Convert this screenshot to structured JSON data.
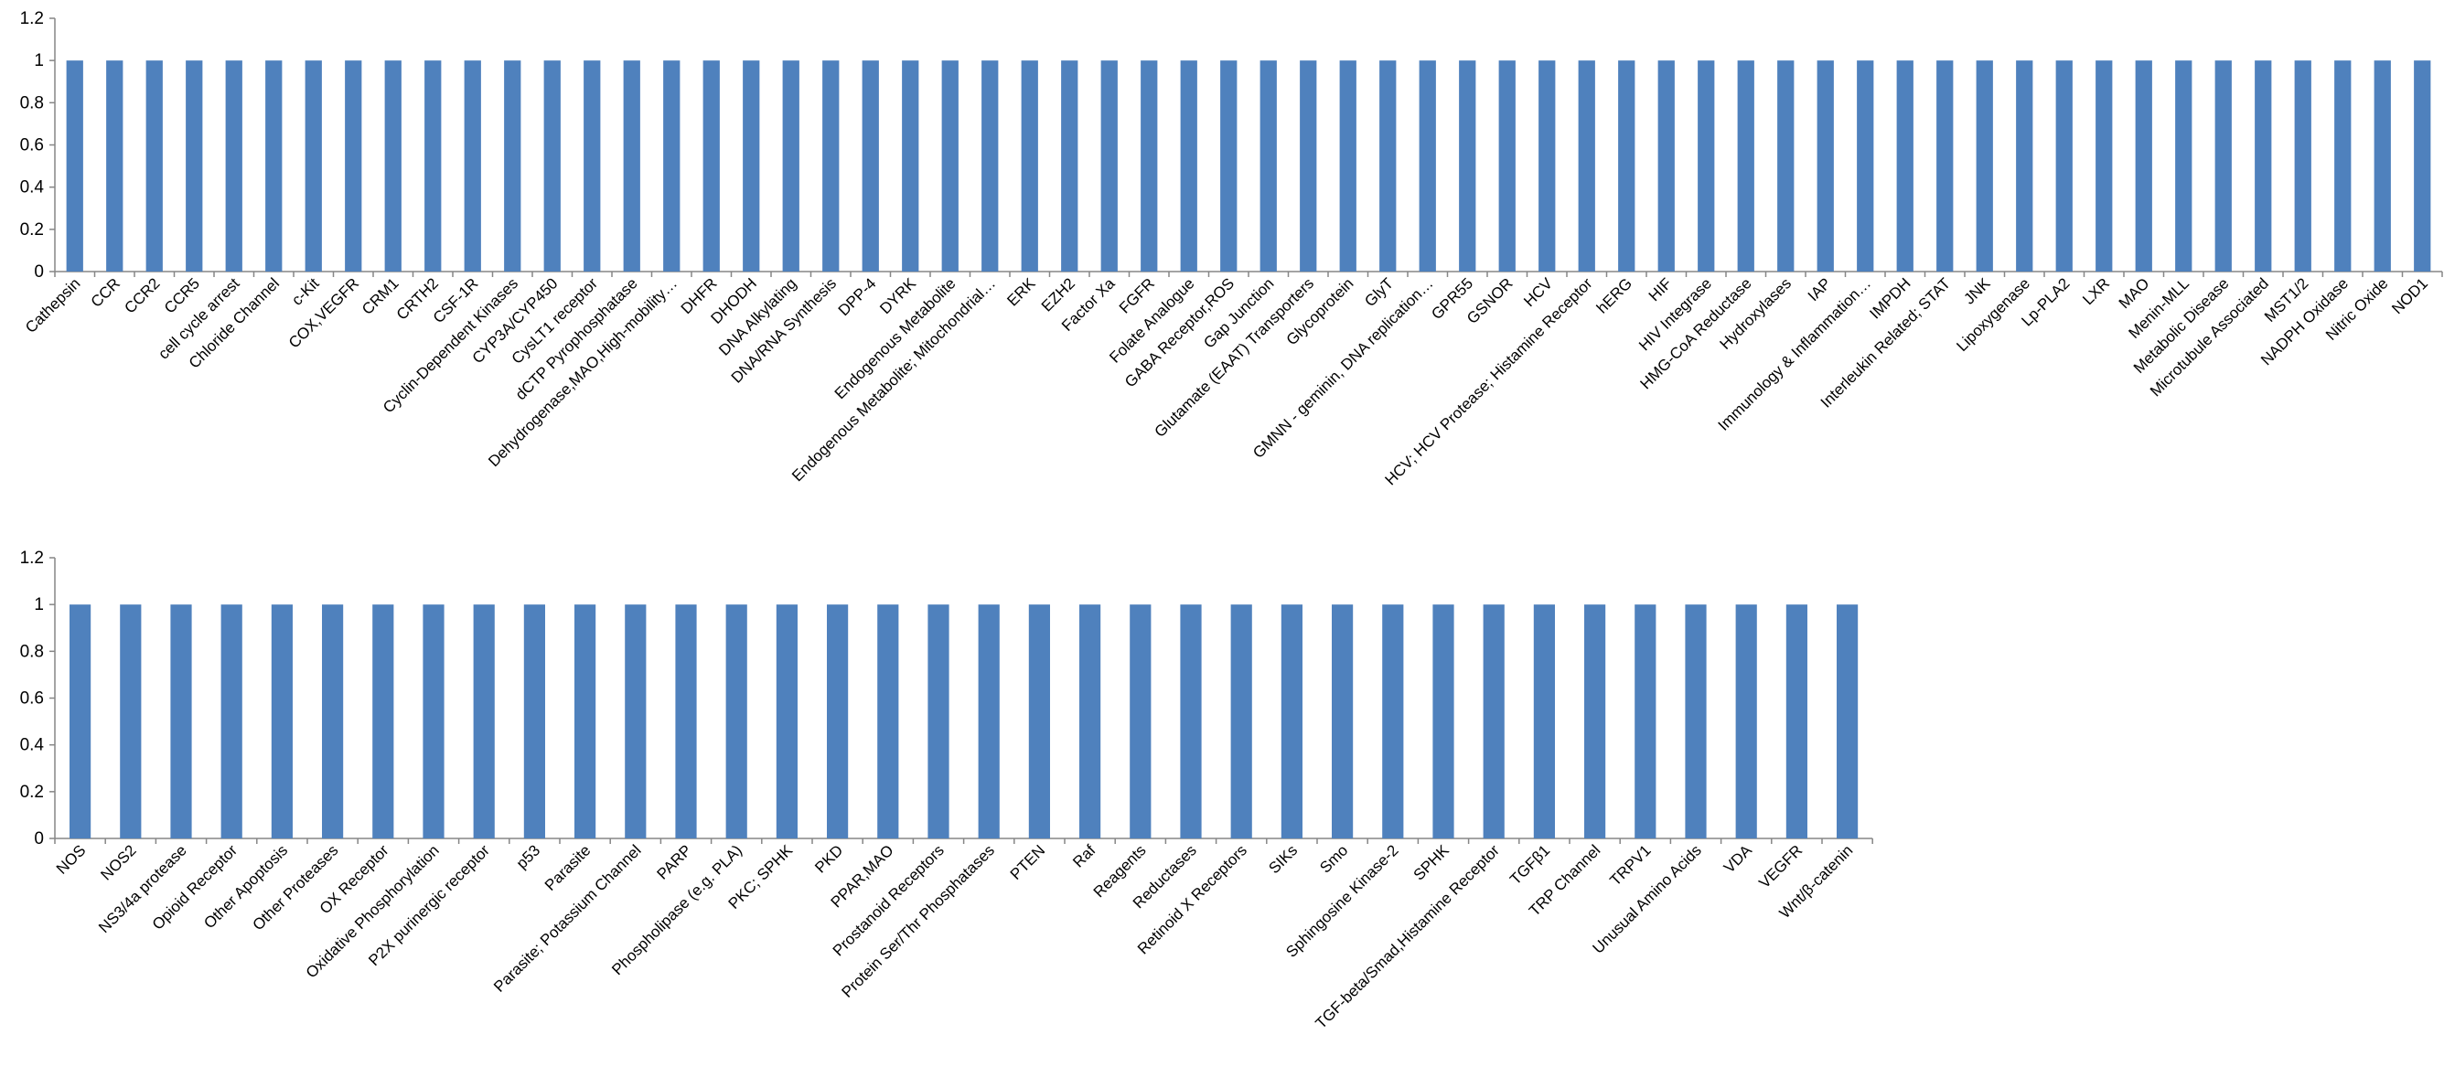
{
  "chart_data": [
    {
      "type": "bar",
      "ylim": [
        0,
        1.2
      ],
      "yticks": [
        "0",
        "0.2",
        "0.4",
        "0.6",
        "0.8",
        "1",
        "1.2"
      ],
      "grid": false,
      "legend": "none",
      "bar_color": "#4F81BD",
      "categories": [
        "Cathepsin",
        "CCR",
        "CCR2",
        "CCR5",
        "cell cycle arrest",
        "Chloride Channel",
        "c-Kit",
        "COX,VEGFR",
        "CRM1",
        "CRTH2",
        "CSF-1R",
        "Cyclin-Dependent Kinases",
        "CYP3A/CYP450",
        "CysLT1 receptor",
        "dCTP Pyrophosphatase",
        "Dehydrogenase,MAO,High-mobility…",
        "DHFR",
        "DHODH",
        "DNA Alkylating",
        "DNA/RNA Synthesis",
        "DPP-4",
        "DYRK",
        "Endogenous Metabolite",
        "Endogenous Metabolite; Mitochondrial…",
        "ERK",
        "EZH2",
        "Factor Xa",
        "FGFR",
        "Folate Analogue",
        "GABA Receptor,ROS",
        "Gap Junction",
        "Glutamate (EAAT) Transporters",
        "Glycoprotein",
        "GlyT",
        "GMNN - geminin, DNA replication…",
        "GPR55",
        "GSNOR",
        "HCV",
        "HCV; HCV Protease; Histamine Receptor",
        "hERG",
        "HIF",
        "HIV Integrase",
        "HMG-CoA Reductase",
        "Hydroxylases",
        "IAP",
        "Immunology & Inflammation…",
        "IMPDH",
        "Interleukin Related; STAT",
        "JNK",
        "Lipoxygenase",
        "Lp-PLA2",
        "LXR",
        "MAO",
        "Menin-MLL",
        "Metabolic Disease",
        "Microtubule Associated",
        "MST1/2",
        "NADPH Oxidase",
        "Nitric Oxide",
        "NOD1"
      ],
      "values": [
        1,
        1,
        1,
        1,
        1,
        1,
        1,
        1,
        1,
        1,
        1,
        1,
        1,
        1,
        1,
        1,
        1,
        1,
        1,
        1,
        1,
        1,
        1,
        1,
        1,
        1,
        1,
        1,
        1,
        1,
        1,
        1,
        1,
        1,
        1,
        1,
        1,
        1,
        1,
        1,
        1,
        1,
        1,
        1,
        1,
        1,
        1,
        1,
        1,
        1,
        1,
        1,
        1,
        1,
        1,
        1,
        1,
        1,
        1,
        1
      ]
    },
    {
      "type": "bar",
      "ylim": [
        0,
        1.2
      ],
      "yticks": [
        "0",
        "0.2",
        "0.4",
        "0.6",
        "0.8",
        "1",
        "1.2"
      ],
      "grid": false,
      "legend": "none",
      "bar_color": "#4F81BD",
      "categories": [
        "NOS",
        "NOS2",
        "NS3/4a protease",
        "Opioid Receptor",
        "Other Apoptosis",
        "Other Proteases",
        "OX Receptor",
        "Oxidative Phosphorylation",
        "P2X purinergic receptor",
        "p53",
        "Parasite",
        "Parasite; Potassium Channel",
        "PARP",
        "Phospholipase (e.g. PLA)",
        "PKC; SPHK",
        "PKD",
        "PPAR,MAO",
        "Prostanoid Receptors",
        "Protein Ser/Thr Phosphatases",
        "PTEN",
        "Raf",
        "Reagents",
        "Reductases",
        "Retinoid X Receptors",
        "SIKs",
        "Smo",
        "Sphingosine Kinase-2",
        "SPHK",
        "TGF-beta/Smad,Histamine Receptor",
        "TGFβ1",
        "TRP Channel",
        "TRPV1",
        "Unusual Amino Acids",
        "VDA",
        "VEGFR",
        "Wnt/β-catenin"
      ],
      "values": [
        1,
        1,
        1,
        1,
        1,
        1,
        1,
        1,
        1,
        1,
        1,
        1,
        1,
        1,
        1,
        1,
        1,
        1,
        1,
        1,
        1,
        1,
        1,
        1,
        1,
        1,
        1,
        1,
        1,
        1,
        1,
        1,
        1,
        1,
        1,
        1
      ]
    }
  ]
}
